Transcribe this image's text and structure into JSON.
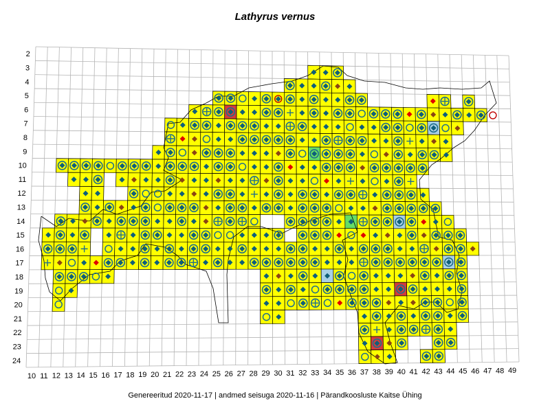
{
  "title": "Lathyrus vernus",
  "footer": {
    "generated": "Genereeritud 2020-11-17",
    "data_state": "andmed seisuga 2020-11-16",
    "organization": "Pärandkoosluste Kaitse Ühing",
    "separator": "|"
  },
  "grid": {
    "columns": [
      "10",
      "11",
      "12",
      "13",
      "14",
      "15",
      "16",
      "17",
      "18",
      "19",
      "20",
      "21",
      "22",
      "23",
      "24",
      "25",
      "26",
      "27",
      "28",
      "29",
      "30",
      "31",
      "32",
      "33",
      "34",
      "35",
      "36",
      "37",
      "38",
      "39",
      "40",
      "41",
      "42",
      "43",
      "44",
      "45",
      "46",
      "47",
      "48",
      "49"
    ],
    "rows": [
      "2",
      "3",
      "4",
      "5",
      "6",
      "7",
      "8",
      "9",
      "10",
      "11",
      "12",
      "13",
      "14",
      "15",
      "16",
      "17",
      "18",
      "19",
      "20",
      "21",
      "22",
      "23",
      "24"
    ]
  },
  "colors": {
    "cell_fill": "#ffff00",
    "cell_border": "#000000",
    "grid_line": "#b4b4b4",
    "diamond_teal": "#0e5f7a",
    "diamond_brown": "#8b4513",
    "diamond_red": "#e00000",
    "circle_teal": "#1f6e8c",
    "circle_red": "#c00000",
    "highlight_blue": "#a8d0e6",
    "highlight_red": "#d23c3c",
    "highlight_green": "#66dd66"
  }
}
